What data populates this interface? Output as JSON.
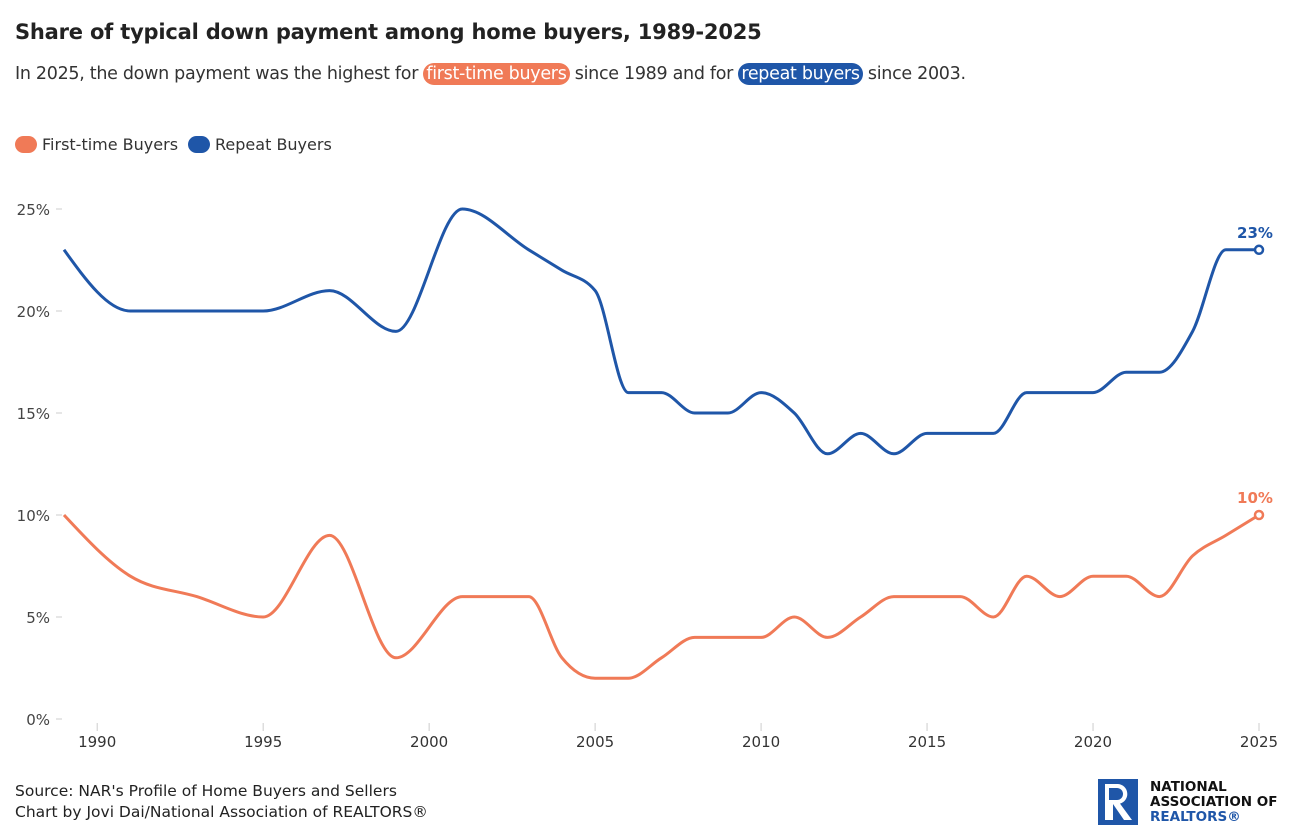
{
  "header": {
    "title": "Share of typical down payment among home buyers, 1989-2025",
    "subtitle_parts": [
      "In 2025, the down payment was the highest for ",
      "first-time buyers",
      " since 1989 and for ",
      "repeat buyers",
      " since 2003."
    ]
  },
  "colors": {
    "first_time": "#f07a57",
    "repeat": "#1f56a8"
  },
  "footer": {
    "source": "Source: NAR's Profile of Home Buyers and Sellers",
    "credit": "Chart by Jovi Dai/National Association of REALTORS®"
  },
  "logo": {
    "line1": "NATIONAL",
    "line2": "ASSOCIATION OF",
    "line3": "REALTORS®"
  },
  "chart_data": {
    "type": "line",
    "title": "Share of typical down payment among home buyers, 1989-2025",
    "xlim": [
      1989,
      2025
    ],
    "ylim": [
      0,
      25
    ],
    "x_ticks": [
      "1990",
      "1995",
      "2000",
      "2005",
      "2010",
      "2015",
      "2020",
      "2025"
    ],
    "y_ticks": [
      "0%",
      "5%",
      "10%",
      "15%",
      "20%",
      "25%"
    ],
    "legend": "top-left",
    "grid": false,
    "series": [
      {
        "name": "First-time Buyers",
        "color": "#f07a57",
        "end_label": "10%",
        "x": [
          1989,
          1991,
          1993,
          1995,
          1997,
          1999,
          2001,
          2003,
          2004,
          2005,
          2006,
          2007,
          2008,
          2009,
          2010,
          2011,
          2012,
          2013,
          2014,
          2015,
          2016,
          2017,
          2018,
          2019,
          2020,
          2021,
          2022,
          2023,
          2024,
          2025
        ],
        "y": [
          10,
          7,
          6,
          5,
          9,
          3,
          6,
          6,
          3,
          2,
          2,
          3,
          4,
          4,
          4,
          5,
          4,
          5,
          6,
          6,
          6,
          5,
          7,
          6,
          7,
          7,
          6,
          8,
          9,
          10
        ]
      },
      {
        "name": "Repeat Buyers",
        "color": "#1f56a8",
        "end_label": "23%",
        "x": [
          1989,
          1991,
          1993,
          1995,
          1997,
          1999,
          2001,
          2003,
          2004,
          2005,
          2006,
          2007,
          2008,
          2009,
          2010,
          2011,
          2012,
          2013,
          2014,
          2015,
          2016,
          2017,
          2018,
          2019,
          2020,
          2021,
          2022,
          2023,
          2024,
          2025
        ],
        "y": [
          23,
          20,
          20,
          20,
          21,
          19,
          25,
          23,
          22,
          21,
          16,
          16,
          15,
          15,
          16,
          15,
          13,
          14,
          13,
          14,
          14,
          14,
          16,
          16,
          16,
          17,
          17,
          19,
          23,
          23
        ]
      }
    ]
  }
}
